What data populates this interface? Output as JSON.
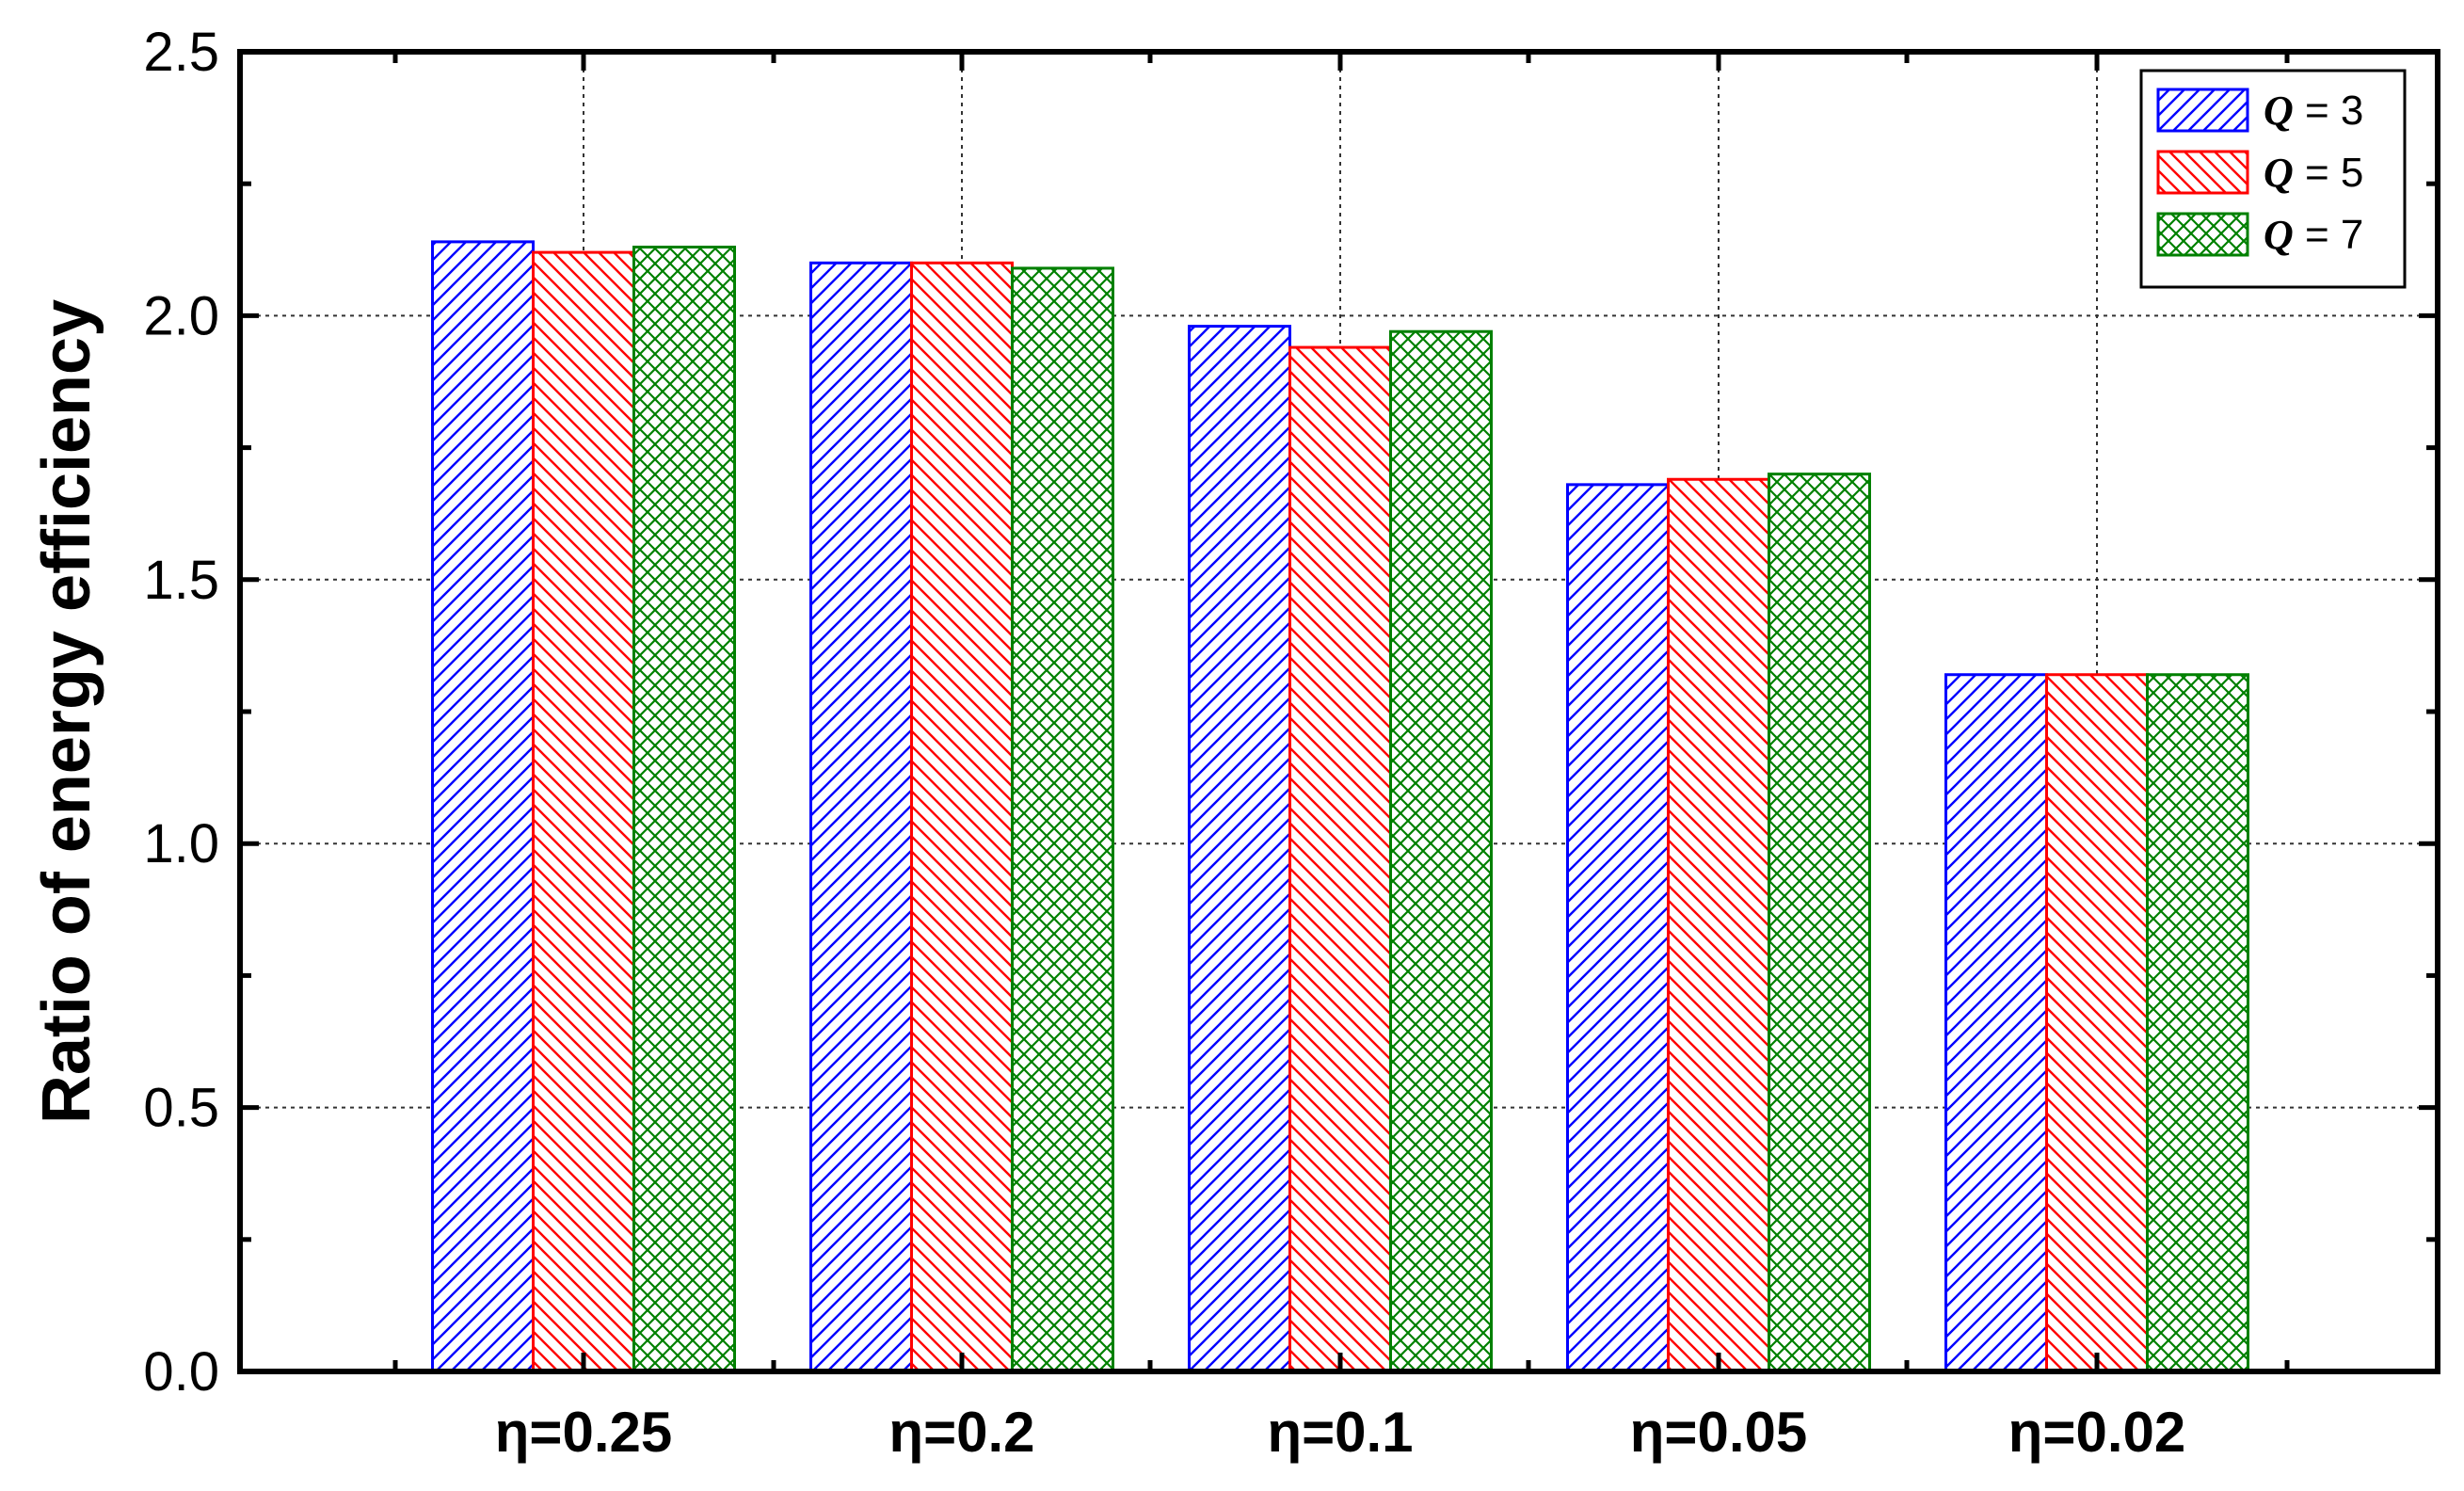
{
  "chart_data": {
    "type": "bar",
    "title": "",
    "xlabel": "",
    "ylabel": "Ratio of energy efficiency",
    "categories": [
      "η=0.25",
      "η=0.2",
      "η=0.1",
      "η=0.05",
      "η=0.02"
    ],
    "series": [
      {
        "name": "Q = 3",
        "symbol": "Q",
        "suffix": " = 3",
        "color": "#0000ff",
        "pattern": "diagonal-up",
        "values": [
          2.14,
          2.1,
          1.98,
          1.68,
          1.32
        ]
      },
      {
        "name": "Q = 5",
        "symbol": "Q",
        "suffix": " = 5",
        "color": "#ff0000",
        "pattern": "diagonal-down",
        "values": [
          2.12,
          2.1,
          1.94,
          1.69,
          1.32
        ]
      },
      {
        "name": "Q = 7",
        "symbol": "Q",
        "suffix": " = 7",
        "color": "#008000",
        "pattern": "crosshatch",
        "values": [
          2.13,
          2.09,
          1.97,
          1.7,
          1.32
        ]
      }
    ],
    "ylim": [
      0,
      2.5
    ],
    "yticks": [
      "0.0",
      "0.5",
      "1.0",
      "1.5",
      "2.0",
      "2.5"
    ],
    "grid": true,
    "legend_position": "top-right"
  }
}
